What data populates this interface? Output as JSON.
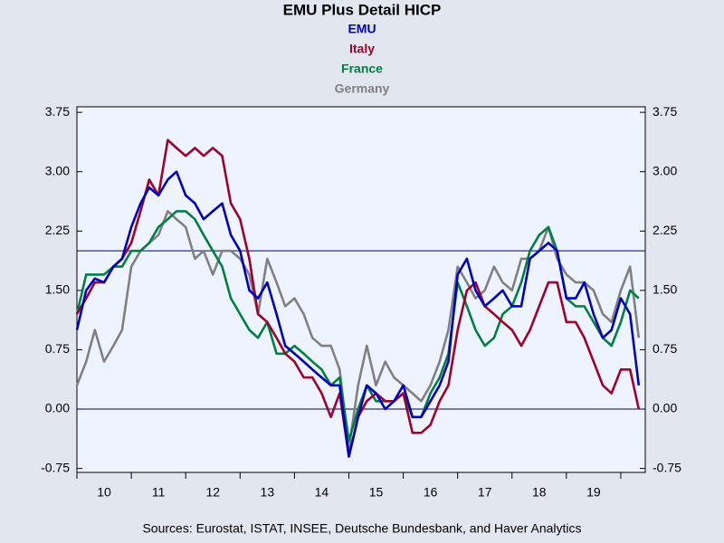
{
  "chart_data": {
    "type": "line",
    "title": "EMU Plus Detail HICP",
    "source": "Sources:   Eurostat, ISTAT, INSEE, Deutsche Bundesbank, and Haver Analytics",
    "x": [
      2010.0,
      2010.17,
      2010.33,
      2010.5,
      2010.67,
      2010.83,
      2011.0,
      2011.17,
      2011.33,
      2011.5,
      2011.67,
      2011.83,
      2012.0,
      2012.17,
      2012.33,
      2012.5,
      2012.67,
      2012.83,
      2013.0,
      2013.17,
      2013.33,
      2013.5,
      2013.67,
      2013.83,
      2014.0,
      2014.17,
      2014.33,
      2014.5,
      2014.67,
      2014.83,
      2015.0,
      2015.17,
      2015.33,
      2015.5,
      2015.67,
      2015.83,
      2016.0,
      2016.17,
      2016.33,
      2016.5,
      2016.67,
      2016.83,
      2017.0,
      2017.17,
      2017.33,
      2017.5,
      2017.67,
      2017.83,
      2018.0,
      2018.17,
      2018.33,
      2018.5,
      2018.67,
      2018.83,
      2019.0,
      2019.17,
      2019.33,
      2019.5,
      2019.67,
      2019.83,
      2020.0,
      2020.17,
      2020.33
    ],
    "series": [
      {
        "name": "EMU",
        "color": "#0000c0",
        "values": [
          1.0,
          1.5,
          1.65,
          1.6,
          1.8,
          1.9,
          2.3,
          2.6,
          2.8,
          2.7,
          2.9,
          3.0,
          2.7,
          2.6,
          2.4,
          2.5,
          2.6,
          2.2,
          2.0,
          1.5,
          1.4,
          1.6,
          1.2,
          0.8,
          0.7,
          0.6,
          0.5,
          0.4,
          0.3,
          0.3,
          -0.6,
          -0.1,
          0.3,
          0.2,
          0.0,
          0.1,
          0.3,
          -0.1,
          -0.1,
          0.1,
          0.3,
          0.6,
          1.7,
          1.9,
          1.5,
          1.3,
          1.4,
          1.5,
          1.3,
          1.3,
          1.9,
          2.0,
          2.1,
          2.0,
          1.4,
          1.4,
          1.6,
          1.2,
          0.9,
          1.0,
          1.4,
          1.2,
          0.3
        ]
      },
      {
        "name": "Italy",
        "color": "#a0002a",
        "values": [
          1.2,
          1.4,
          1.6,
          1.6,
          1.8,
          1.9,
          2.1,
          2.5,
          2.9,
          2.7,
          3.4,
          3.3,
          3.2,
          3.3,
          3.2,
          3.3,
          3.2,
          2.6,
          2.4,
          1.9,
          1.2,
          1.1,
          0.9,
          0.7,
          0.6,
          0.4,
          0.4,
          0.2,
          -0.1,
          0.2,
          -0.6,
          -0.1,
          0.1,
          0.2,
          0.1,
          0.1,
          0.2,
          -0.3,
          -0.3,
          -0.2,
          0.1,
          0.3,
          1.0,
          1.5,
          1.6,
          1.3,
          1.2,
          1.1,
          1.0,
          0.8,
          1.0,
          1.3,
          1.6,
          1.6,
          1.1,
          1.1,
          0.9,
          0.6,
          0.3,
          0.2,
          0.5,
          0.5,
          0.0
        ]
      },
      {
        "name": "France",
        "color": "#008040",
        "values": [
          1.2,
          1.7,
          1.7,
          1.7,
          1.8,
          1.8,
          2.0,
          2.0,
          2.1,
          2.3,
          2.4,
          2.5,
          2.5,
          2.4,
          2.2,
          2.0,
          1.8,
          1.4,
          1.2,
          1.0,
          0.9,
          1.1,
          0.7,
          0.7,
          0.8,
          0.7,
          0.6,
          0.5,
          0.3,
          0.4,
          -0.4,
          0.0,
          0.3,
          0.1,
          0.1,
          0.1,
          0.2,
          -0.1,
          -0.1,
          0.2,
          0.4,
          0.7,
          1.6,
          1.3,
          1.0,
          0.8,
          0.9,
          1.2,
          1.3,
          1.6,
          2.0,
          2.2,
          2.3,
          2.0,
          1.4,
          1.3,
          1.3,
          1.1,
          0.9,
          0.8,
          1.1,
          1.5,
          1.4
        ]
      },
      {
        "name": "Germany",
        "color": "#808080",
        "values": [
          0.3,
          0.6,
          1.0,
          0.6,
          0.8,
          1.0,
          1.8,
          2.0,
          2.1,
          2.2,
          2.5,
          2.4,
          2.3,
          1.9,
          2.0,
          1.7,
          2.0,
          2.0,
          1.9,
          1.7,
          1.2,
          1.9,
          1.6,
          1.3,
          1.4,
          1.2,
          0.9,
          0.8,
          0.8,
          0.5,
          -0.5,
          0.3,
          0.8,
          0.3,
          0.6,
          0.4,
          0.3,
          0.2,
          0.1,
          0.3,
          0.6,
          1.0,
          1.8,
          1.6,
          1.4,
          1.5,
          1.8,
          1.6,
          1.5,
          1.9,
          1.9,
          2.0,
          2.3,
          1.9,
          1.7,
          1.6,
          1.6,
          1.5,
          1.2,
          1.1,
          1.5,
          1.8,
          0.9
        ]
      }
    ],
    "xlim": [
      2010,
      2020.45
    ],
    "xticks": [
      2010,
      2011,
      2012,
      2013,
      2014,
      2015,
      2016,
      2017,
      2018,
      2019,
      2020
    ],
    "xtick_labels": [
      {
        "value": 2010.5,
        "label": "10"
      },
      {
        "value": 2011.5,
        "label": "11"
      },
      {
        "value": 2012.5,
        "label": "12"
      },
      {
        "value": 2013.5,
        "label": "13"
      },
      {
        "value": 2014.5,
        "label": "14"
      },
      {
        "value": 2015.5,
        "label": "15"
      },
      {
        "value": 2016.5,
        "label": "16"
      },
      {
        "value": 2017.5,
        "label": "17"
      },
      {
        "value": 2018.5,
        "label": "18"
      },
      {
        "value": 2019.5,
        "label": "19"
      }
    ],
    "ylim": [
      -0.8,
      3.82
    ],
    "yticks": [
      {
        "value": -0.75,
        "label": "-0.75"
      },
      {
        "value": 0,
        "label": "0.00"
      },
      {
        "value": 0.75,
        "label": "0.75"
      },
      {
        "value": 1.5,
        "label": "1.50"
      },
      {
        "value": 2.25,
        "label": "2.25"
      },
      {
        "value": 3,
        "label": "3.00"
      },
      {
        "value": 3.75,
        "label": "3.75"
      }
    ],
    "reference_lines": [
      2.0,
      0
    ]
  }
}
